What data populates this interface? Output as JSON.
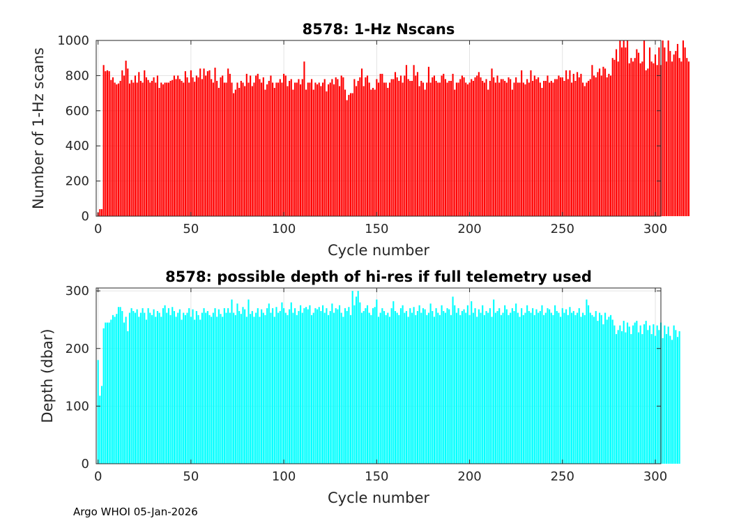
{
  "footer": "Argo WHOI 05-Jan-2026",
  "colors": {
    "top_bars": "#ff0000",
    "bottom_bars": "#00ffff",
    "axis": "#262626",
    "grid": "#dcdcdc"
  },
  "chart_data": [
    {
      "type": "bar",
      "title": "8578: 1-Hz Nscans",
      "xlabel": "Cycle number",
      "ylabel": "Number of 1-Hz scans",
      "xlim": [
        -1,
        303
      ],
      "ylim": [
        0,
        1000
      ],
      "xticks": [
        "0",
        "50",
        "100",
        "150",
        "200",
        "250",
        "300"
      ],
      "yticks": [
        "0",
        "200",
        "400",
        "600",
        "800",
        "1000"
      ],
      "grid": true,
      "x_start": 0,
      "values": [
        20,
        40,
        40,
        860,
        825,
        830,
        825,
        775,
        790,
        760,
        750,
        755,
        770,
        830,
        800,
        885,
        840,
        755,
        775,
        760,
        800,
        760,
        820,
        770,
        760,
        830,
        790,
        775,
        760,
        770,
        790,
        760,
        800,
        730,
        760,
        750,
        760,
        760,
        760,
        770,
        775,
        800,
        780,
        800,
        780,
        770,
        760,
        825,
        790,
        760,
        830,
        790,
        765,
        800,
        790,
        840,
        780,
        840,
        800,
        825,
        830,
        780,
        760,
        845,
        770,
        730,
        790,
        800,
        760,
        760,
        840,
        810,
        760,
        700,
        720,
        760,
        730,
        770,
        760,
        740,
        810,
        760,
        800,
        740,
        760,
        800,
        810,
        780,
        760,
        790,
        720,
        750,
        770,
        800,
        760,
        730,
        760,
        760,
        780,
        760,
        810,
        800,
        740,
        770,
        780,
        720,
        760,
        760,
        780,
        750,
        780,
        880,
        720,
        760,
        760,
        780,
        720,
        760,
        750,
        760,
        740,
        760,
        780,
        710,
        750,
        760,
        780,
        750,
        790,
        780,
        740,
        800,
        790,
        720,
        660,
        690,
        700,
        700,
        780,
        740,
        770,
        790,
        840,
        740,
        790,
        800,
        760,
        720,
        730,
        720,
        780,
        760,
        810,
        810,
        760,
        760,
        730,
        760,
        780,
        780,
        820,
        790,
        770,
        800,
        760,
        800,
        860,
        780,
        770,
        770,
        860,
        800,
        820,
        740,
        770,
        760,
        720,
        760,
        850,
        760,
        790,
        800,
        770,
        760,
        760,
        800,
        810,
        780,
        760,
        770,
        770,
        810,
        720,
        760,
        760,
        780,
        800,
        790,
        760,
        750,
        760,
        780,
        770,
        790,
        800,
        820,
        790,
        770,
        760,
        780,
        720,
        770,
        840,
        790,
        760,
        800,
        760,
        780,
        780,
        770,
        760,
        790,
        780,
        720,
        760,
        790,
        760,
        760,
        830,
        760,
        750,
        780,
        760,
        830,
        770,
        800,
        780,
        790,
        760,
        730,
        770,
        770,
        800,
        760,
        770,
        760,
        780,
        780,
        800,
        790,
        790,
        770,
        830,
        780,
        830,
        760,
        810,
        770,
        820,
        790,
        810,
        760,
        740,
        760,
        770,
        780,
        860,
        800,
        790,
        820,
        840,
        800,
        850,
        840,
        790,
        810,
        800,
        900,
        890,
        950,
        880,
        1000,
        960,
        1000,
        960,
        1000,
        870,
        900,
        880,
        900,
        950,
        930,
        870,
        880,
        1000,
        830,
        840,
        960,
        880,
        870,
        920,
        860,
        960,
        860,
        1000,
        960,
        880,
        1000,
        940,
        880,
        920,
        940,
        980,
        900,
        880,
        1000,
        960,
        900,
        880
      ]
    },
    {
      "type": "bar",
      "title": "8578: possible depth of hi-res if full telemetry used",
      "xlabel": "Cycle number",
      "ylabel": "Depth (dbar)",
      "xlim": [
        -1,
        303
      ],
      "ylim": [
        0,
        305
      ],
      "xticks": [
        "0",
        "50",
        "100",
        "150",
        "200",
        "250",
        "300"
      ],
      "yticks": [
        "0",
        "100",
        "200",
        "300"
      ],
      "grid": true,
      "x_start": 0,
      "values": [
        180,
        118,
        135,
        235,
        245,
        245,
        245,
        250,
        258,
        255,
        260,
        272,
        272,
        265,
        245,
        255,
        230,
        262,
        270,
        265,
        262,
        268,
        255,
        262,
        270,
        262,
        250,
        270,
        262,
        258,
        268,
        255,
        265,
        262,
        255,
        270,
        275,
        262,
        270,
        258,
        272,
        265,
        255,
        262,
        268,
        250,
        262,
        258,
        262,
        270,
        255,
        268,
        250,
        265,
        258,
        250,
        262,
        270,
        262,
        265,
        258,
        255,
        262,
        270,
        255,
        268,
        260,
        255,
        270,
        262,
        270,
        262,
        285,
        262,
        258,
        278,
        265,
        260,
        272,
        268,
        255,
        285,
        260,
        265,
        255,
        262,
        270,
        255,
        268,
        262,
        258,
        270,
        278,
        262,
        270,
        255,
        272,
        262,
        265,
        280,
        270,
        262,
        258,
        268,
        280,
        262,
        270,
        258,
        265,
        275,
        262,
        270,
        272,
        268,
        275,
        258,
        262,
        270,
        268,
        272,
        265,
        275,
        262,
        270,
        258,
        265,
        278,
        262,
        270,
        268,
        275,
        262,
        255,
        270,
        265,
        272,
        258,
        300,
        275,
        290,
        300,
        280,
        262,
        265,
        270,
        275,
        262,
        258,
        270,
        272,
        285,
        255,
        262,
        270,
        265,
        258,
        262,
        255,
        270,
        282,
        265,
        262,
        258,
        270,
        275,
        262,
        265,
        255,
        270,
        262,
        272,
        258,
        265,
        275,
        262,
        270,
        268,
        258,
        262,
        278,
        265,
        255,
        270,
        262,
        258,
        275,
        265,
        262,
        270,
        268,
        258,
        290,
        275,
        262,
        270,
        258,
        265,
        268,
        262,
        275,
        258,
        282,
        262,
        270,
        255,
        268,
        262,
        275,
        258,
        265,
        262,
        270,
        255,
        285,
        262,
        265,
        270,
        258,
        262,
        275,
        268,
        258,
        262,
        270,
        265,
        278,
        262,
        255,
        270,
        258,
        262,
        275,
        265,
        262,
        270,
        258,
        268,
        262,
        265,
        275,
        258,
        262,
        270,
        268,
        262,
        258,
        275,
        265,
        262,
        255,
        270,
        262,
        268,
        258,
        272,
        262,
        265,
        258,
        262,
        270,
        255,
        262,
        258,
        285,
        275,
        262,
        258,
        255,
        265,
        248,
        262,
        258,
        242,
        262,
        250,
        255,
        258,
        250,
        240,
        225,
        232,
        240,
        230,
        248,
        228,
        245,
        238,
        225,
        240,
        245,
        248,
        228,
        240,
        225,
        242,
        248,
        232,
        240,
        225,
        242,
        222,
        240,
        232,
        245,
        218,
        240,
        225,
        238,
        222,
        215,
        240,
        232,
        220,
        230
      ]
    }
  ]
}
